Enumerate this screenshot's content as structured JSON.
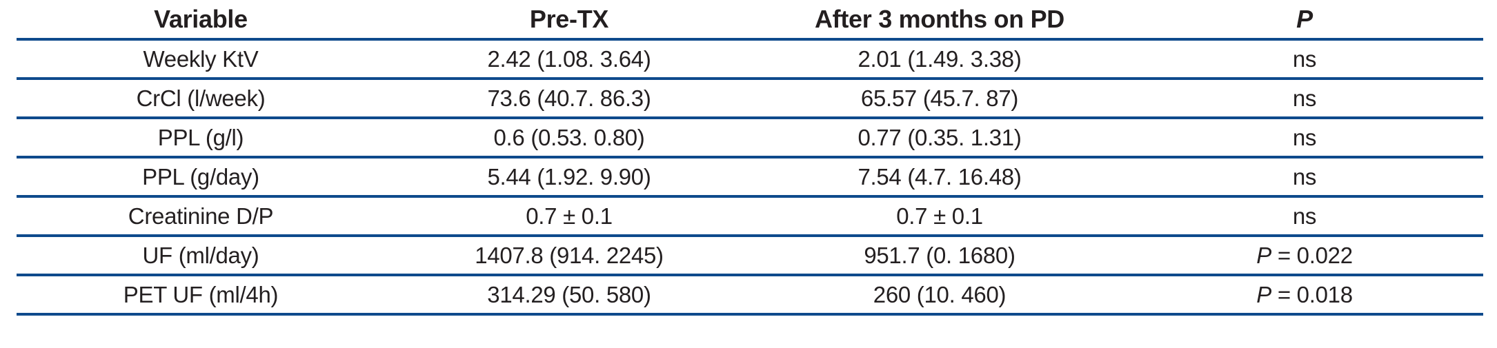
{
  "colors": {
    "rule": "#0e4a8c",
    "text": "#231f20"
  },
  "table": {
    "headers": {
      "variable": "Variable",
      "pre_tx": "Pre-TX",
      "after": "After 3 months on PD",
      "p": "P"
    },
    "rows": [
      {
        "variable": "Weekly KtV",
        "pre_tx": "2.42 (1.08. 3.64)",
        "after": "2.01 (1.49. 3.38)",
        "p_italic": "",
        "p_text": "ns"
      },
      {
        "variable": "CrCl (l/week)",
        "pre_tx": "73.6 (40.7. 86.3)",
        "after": "65.57 (45.7. 87)",
        "p_italic": "",
        "p_text": "ns"
      },
      {
        "variable": "PPL (g/l)",
        "pre_tx": "0.6 (0.53. 0.80)",
        "after": "0.77 (0.35. 1.31)",
        "p_italic": "",
        "p_text": "ns"
      },
      {
        "variable": "PPL (g/day)",
        "pre_tx": "5.44 (1.92. 9.90)",
        "after": "7.54 (4.7. 16.48)",
        "p_italic": "",
        "p_text": "ns"
      },
      {
        "variable": "Creatinine D/P",
        "pre_tx": "0.7 ± 0.1",
        "after": "0.7 ± 0.1",
        "p_italic": "",
        "p_text": "ns"
      },
      {
        "variable": "UF (ml/day)",
        "pre_tx": "1407.8 (914. 2245)",
        "after": "951.7 (0. 1680)",
        "p_italic": "P",
        "p_text": " = 0.022"
      },
      {
        "variable": "PET UF (ml/4h)",
        "pre_tx": "314.29 (50. 580)",
        "after": "260 (10. 460)",
        "p_italic": "P",
        "p_text": " = 0.018"
      }
    ]
  },
  "chart_data": {
    "type": "table",
    "columns": [
      "Variable",
      "Pre-TX",
      "After 3 months on PD",
      "P"
    ],
    "rows": [
      [
        "Weekly KtV",
        "2.42 (1.08. 3.64)",
        "2.01 (1.49. 3.38)",
        "ns"
      ],
      [
        "CrCl (l/week)",
        "73.6 (40.7. 86.3)",
        "65.57 (45.7. 87)",
        "ns"
      ],
      [
        "PPL (g/l)",
        "0.6 (0.53. 0.80)",
        "0.77 (0.35. 1.31)",
        "ns"
      ],
      [
        "PPL (g/day)",
        "5.44 (1.92. 9.90)",
        "7.54 (4.7. 16.48)",
        "ns"
      ],
      [
        "Creatinine D/P",
        "0.7 ± 0.1",
        "0.7 ± 0.1",
        "ns"
      ],
      [
        "UF (ml/day)",
        "1407.8 (914. 2245)",
        "951.7 (0. 1680)",
        "P = 0.022"
      ],
      [
        "PET UF (ml/4h)",
        "314.29 (50. 580)",
        "260 (10. 460)",
        "P = 0.018"
      ]
    ]
  }
}
